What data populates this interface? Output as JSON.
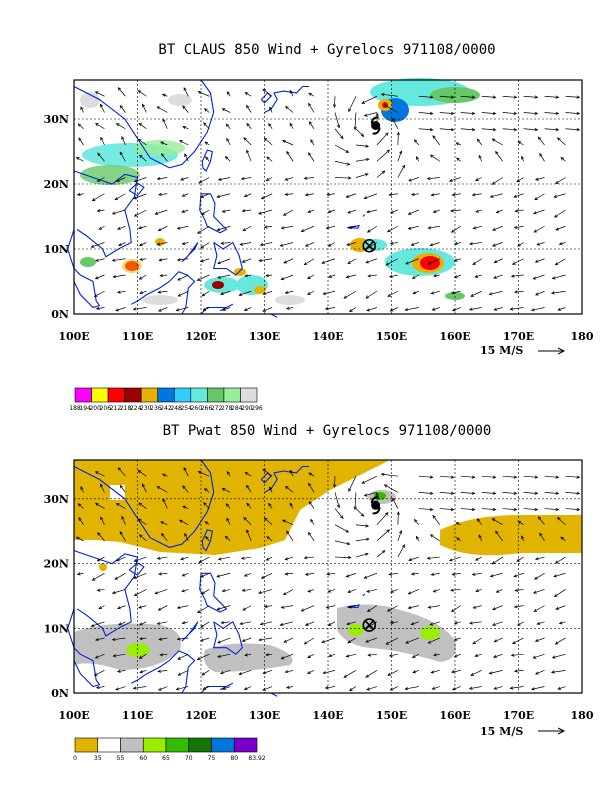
{
  "panels": [
    {
      "id": "top",
      "title": "BT CLAUS 850 Wind + Gyrelocs 971108/0000",
      "x_ticks": [
        "100E",
        "110E",
        "120E",
        "130E",
        "140E",
        "150E",
        "160E",
        "170E",
        "180"
      ],
      "y_ticks": [
        "0N",
        "10N",
        "20N",
        "30N"
      ],
      "scale_label": "15 M/S",
      "colorbar": {
        "labels": [
          "188",
          "194",
          "200",
          "206",
          "212",
          "218",
          "224",
          "230",
          "236",
          "242",
          "248",
          "254",
          "260",
          "266",
          "272",
          "278",
          "284",
          "290",
          "296"
        ],
        "colors": [
          "#ff00ff",
          "#ffff00",
          "#ff0000",
          "#990000",
          "#e8b000",
          "#0077dd",
          "#33ccff",
          "#66e8dd",
          "#66c866",
          "#99ee99",
          "#dddddd"
        ],
        "printed_labels": [
          "188",
          "194",
          "200",
          "206",
          "212",
          "218",
          "224",
          "230",
          "236",
          "242",
          "248",
          "254",
          "260",
          "266",
          "272",
          "278",
          "284",
          "290",
          "296"
        ]
      }
    },
    {
      "id": "bottom",
      "title": "BT Pwat 850 Wind + Gyrelocs 971108/0000",
      "x_ticks": [
        "100E",
        "110E",
        "120E",
        "130E",
        "140E",
        "150E",
        "160E",
        "170E",
        "180"
      ],
      "y_ticks": [
        "0N",
        "10N",
        "20N",
        "30N"
      ],
      "scale_label": "15 M/S",
      "colorbar": {
        "colors": [
          "#e0b400",
          "#ffffff",
          "#c0c0c0",
          "#99ee00",
          "#33bb00",
          "#117700",
          "#0077dd",
          "#7700cc"
        ],
        "printed_labels": [
          "0",
          "35",
          "55",
          "60",
          "65",
          "70",
          "75",
          "80",
          "83.92"
        ]
      }
    }
  ],
  "gyre_markers": [
    {
      "type": "tropical-cyclone-symbol",
      "lon": 147.5,
      "lat": 29
    },
    {
      "type": "circled-x",
      "lon": 146.5,
      "lat": 10.5
    }
  ]
}
